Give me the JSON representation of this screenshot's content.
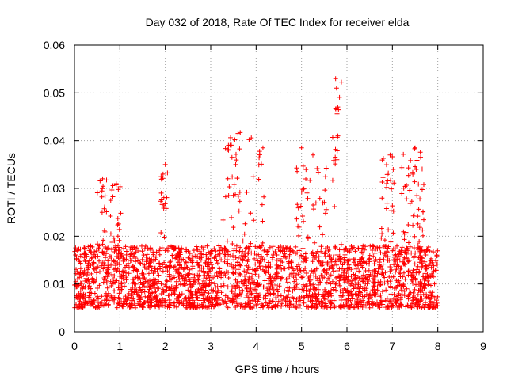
{
  "chart_data": {
    "type": "scatter",
    "title": "Day 032 of 2018, Rate Of TEC Index for receiver elda",
    "xlabel": "GPS time / hours",
    "ylabel": "ROTI / TECUs",
    "xlim": [
      0,
      9
    ],
    "ylim": [
      0,
      0.06
    ],
    "xticks": [
      0,
      1,
      2,
      3,
      4,
      5,
      6,
      7,
      8,
      9
    ],
    "yticks": [
      0,
      0.01,
      0.02,
      0.03,
      0.04,
      0.05,
      0.06
    ],
    "xtick_labels": [
      "0",
      "1",
      "2",
      "3",
      "4",
      "5",
      "6",
      "7",
      "8",
      "9"
    ],
    "ytick_labels": [
      "0",
      "0.01",
      "0.02",
      "0.03",
      "0.04",
      "0.05",
      "0.06"
    ],
    "grid": true,
    "marker": "+",
    "color": "#ff0000",
    "series": [
      {
        "name": "ROTI",
        "x_range": [
          0,
          8
        ],
        "typical_range": [
          0.005,
          0.018
        ],
        "notable_peaks": [
          {
            "x": 0.62,
            "y": 0.032
          },
          {
            "x": 0.92,
            "y": 0.031
          },
          {
            "x": 1.95,
            "y": 0.033
          },
          {
            "x": 2.0,
            "y": 0.035
          },
          {
            "x": 3.55,
            "y": 0.035
          },
          {
            "x": 3.6,
            "y": 0.0415
          },
          {
            "x": 3.65,
            "y": 0.0417
          },
          {
            "x": 4.15,
            "y": 0.0385
          },
          {
            "x": 5.0,
            "y": 0.0385
          },
          {
            "x": 5.25,
            "y": 0.037
          },
          {
            "x": 5.75,
            "y": 0.053
          },
          {
            "x": 5.77,
            "y": 0.051
          },
          {
            "x": 5.78,
            "y": 0.0465
          },
          {
            "x": 5.8,
            "y": 0.041
          },
          {
            "x": 5.78,
            "y": 0.036
          },
          {
            "x": 6.95,
            "y": 0.037
          },
          {
            "x": 7.5,
            "y": 0.0385
          },
          {
            "x": 7.45,
            "y": 0.033
          }
        ],
        "minimum_observed": 0.003
      }
    ]
  }
}
